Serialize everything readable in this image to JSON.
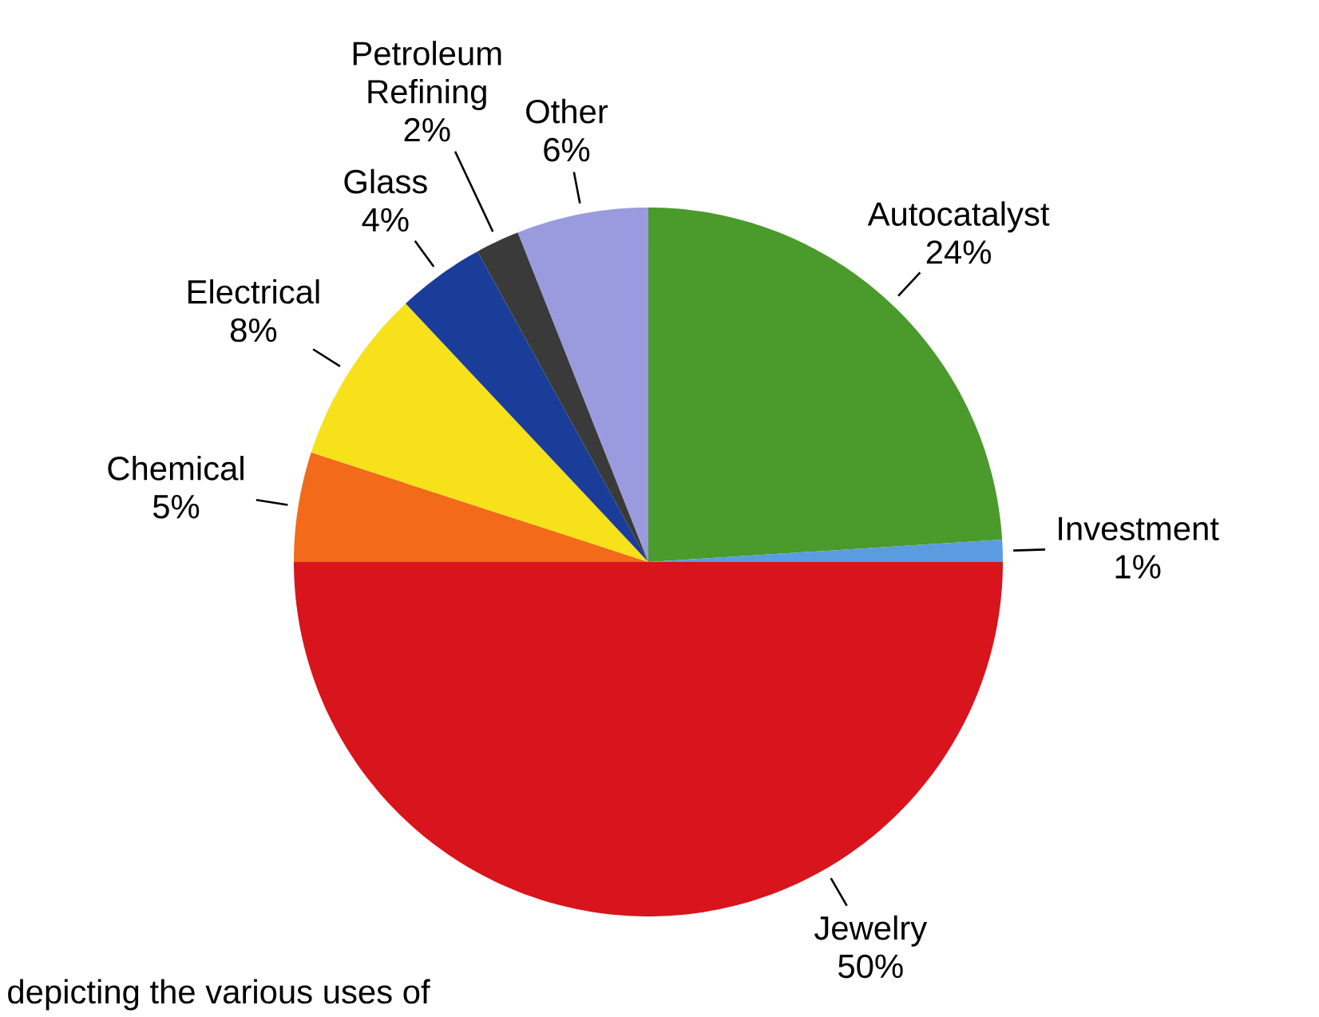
{
  "chart_data": {
    "type": "pie",
    "categories": [
      "Autocatalyst",
      "Investment",
      "Jewelry",
      "Chemical",
      "Electrical",
      "Glass",
      "Petroleum Refining",
      "Other"
    ],
    "values": [
      24,
      1,
      50,
      5,
      8,
      4,
      2,
      6
    ],
    "value_labels": [
      "24%",
      "1%",
      "50%",
      "5%",
      "8%",
      "4%",
      "2%",
      "6%"
    ],
    "colors": [
      "#4a9a2c",
      "#5b9be0",
      "#d8141c",
      "#f26a1a",
      "#f7e11a",
      "#1a3d9a",
      "#3a3a3a",
      "#9a9ade"
    ],
    "annotations": [
      "depicting the various uses of"
    ]
  }
}
